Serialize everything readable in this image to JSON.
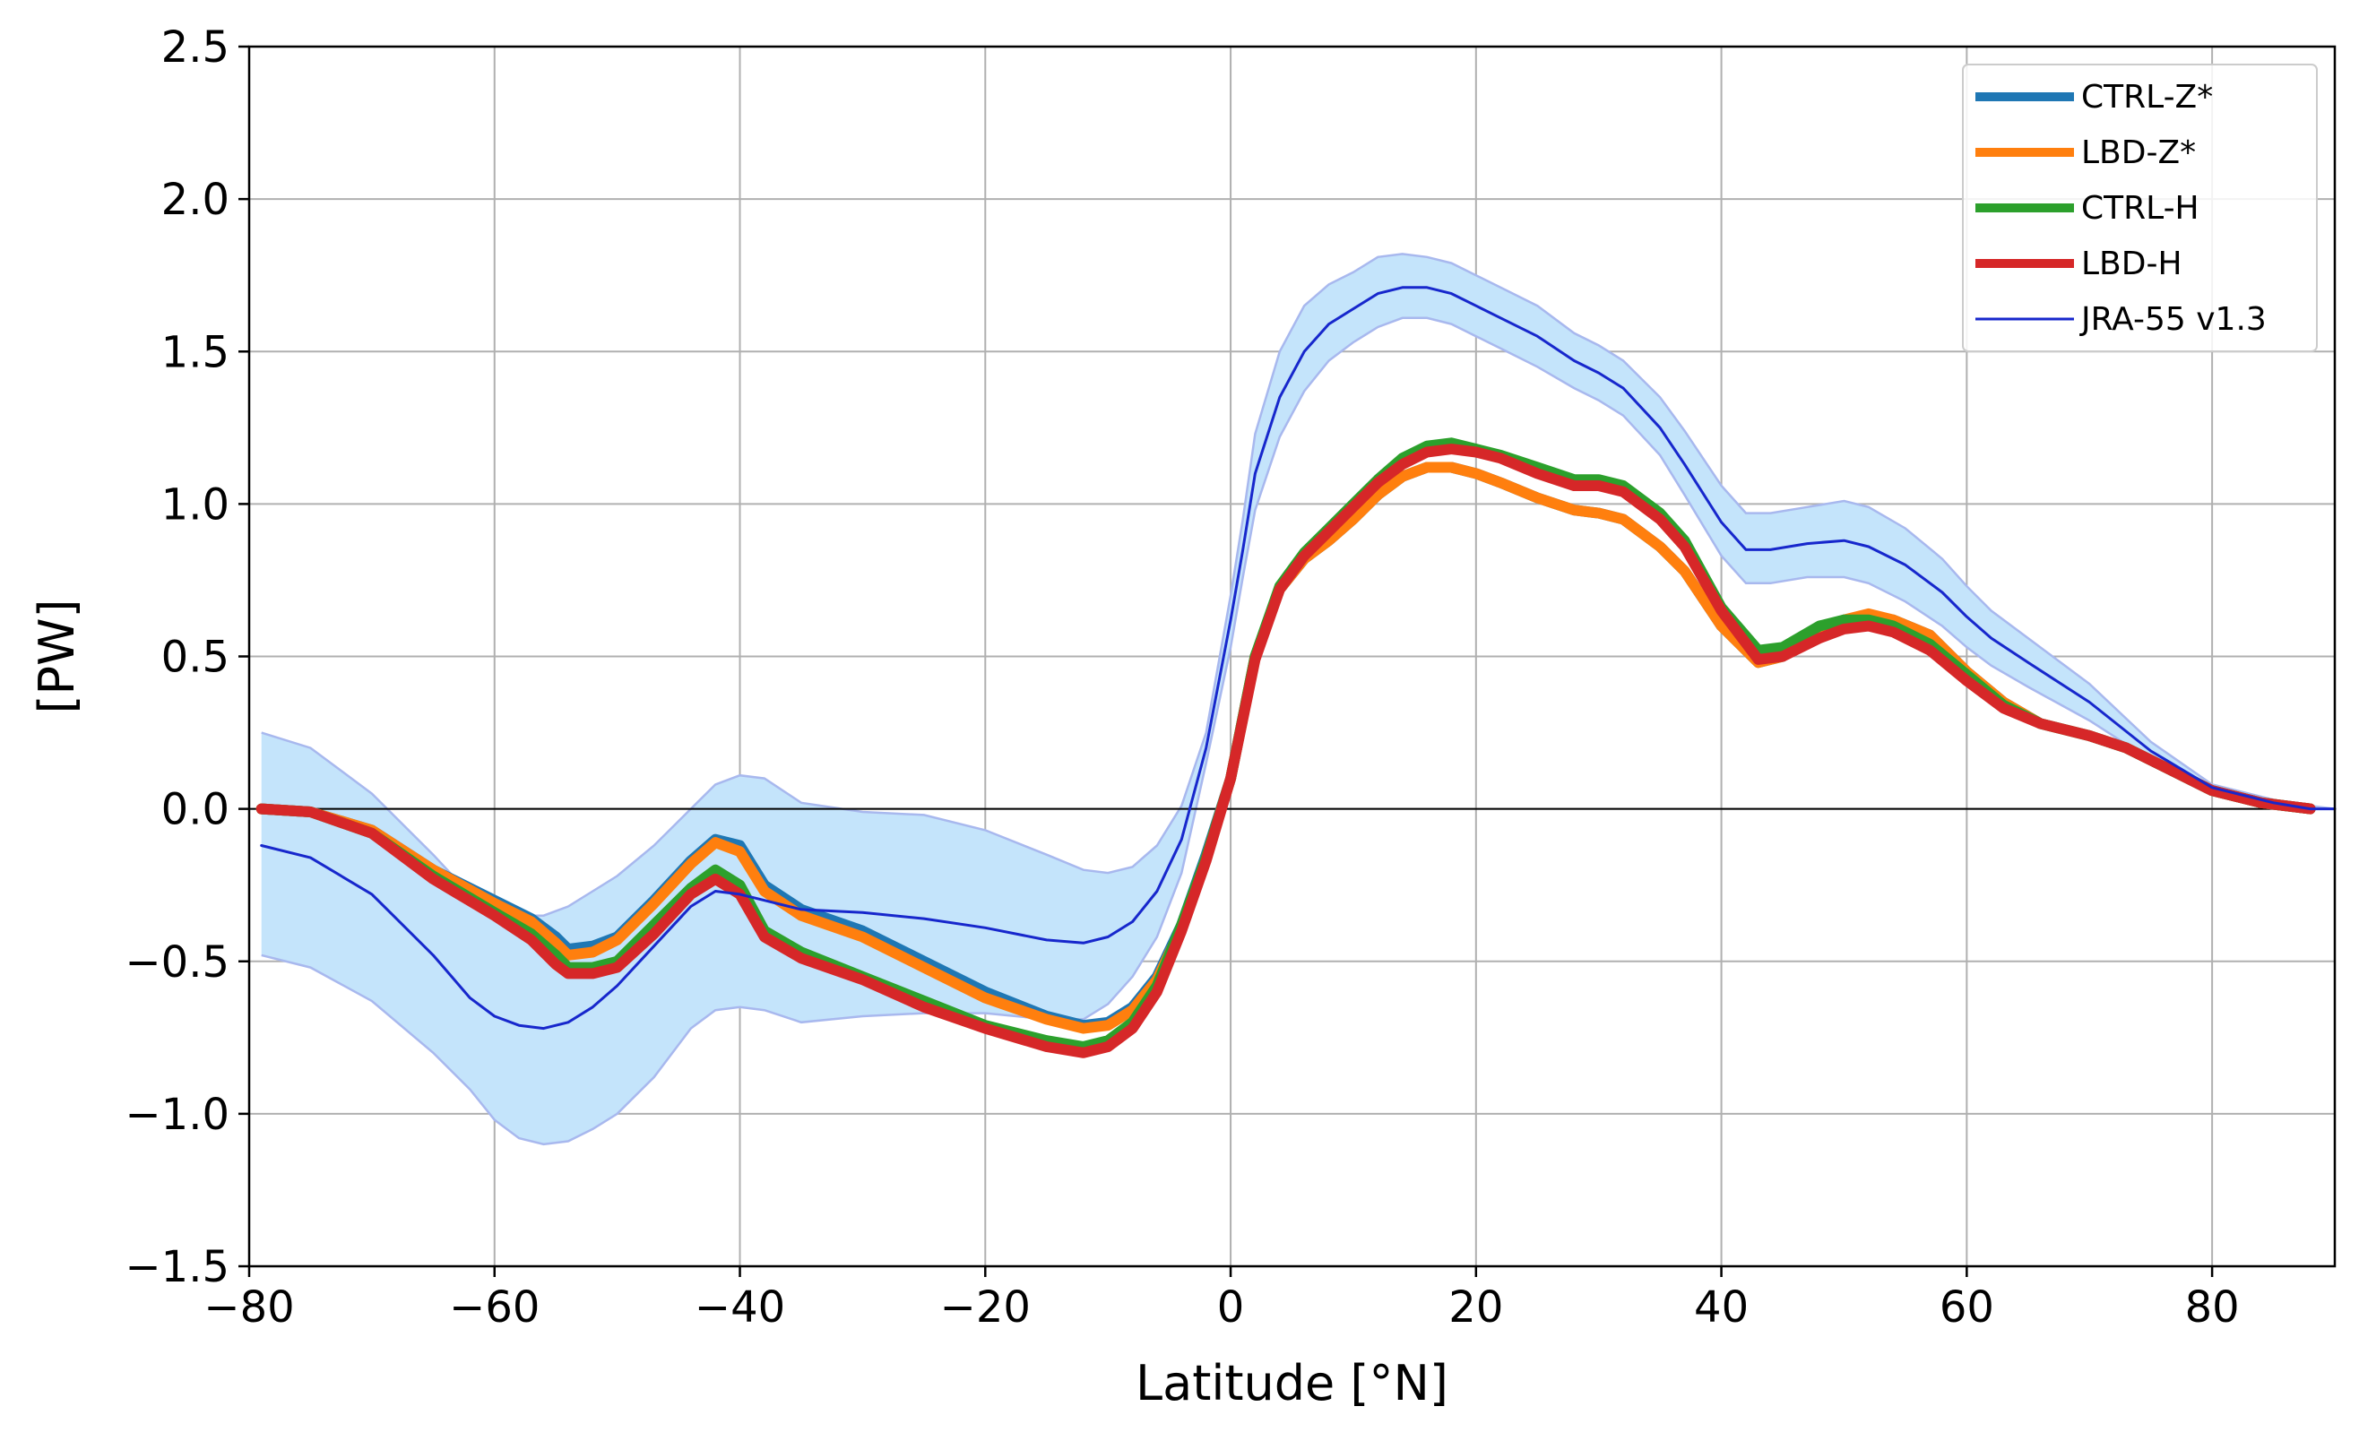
{
  "chart_data": {
    "type": "line",
    "title": "",
    "xlabel": "Latitude [°N]",
    "ylabel": "[PW]",
    "xlim": [
      -80,
      90
    ],
    "ylim": [
      -1.5,
      2.5
    ],
    "xticks": [
      -80,
      -60,
      -40,
      -20,
      0,
      20,
      40,
      60,
      80
    ],
    "xtick_labels": [
      "−80",
      "−60",
      "−40",
      "−20",
      "0",
      "20",
      "40",
      "60",
      "80"
    ],
    "yticks": [
      -1.5,
      -1.0,
      -0.5,
      0.0,
      0.5,
      1.0,
      1.5,
      2.0,
      2.5
    ],
    "ytick_labels": [
      "−1.5",
      "−1.0",
      "−0.5",
      "0.0",
      "0.5",
      "1.0",
      "1.5",
      "2.0",
      "2.5"
    ],
    "grid": true,
    "zero_line": true,
    "legend_position": "upper right",
    "series": [
      {
        "name": "CTRL-Z*",
        "color": "#1f77b4",
        "x": [
          -79,
          -75,
          -70,
          -65,
          -60,
          -57,
          -55,
          -54,
          -52,
          -50,
          -47,
          -44,
          -42,
          -40,
          -38,
          -35,
          -30,
          -25,
          -20,
          -15,
          -12,
          -10,
          -8,
          -6,
          -4,
          -2,
          0,
          2,
          4,
          6,
          8,
          10,
          12,
          14,
          16,
          18,
          20,
          22,
          25,
          28,
          30,
          32,
          35,
          37,
          40,
          43,
          45,
          48,
          50,
          52,
          54,
          57,
          60,
          63,
          66,
          70,
          73,
          76,
          80,
          84,
          88
        ],
        "y": [
          0.0,
          -0.01,
          -0.07,
          -0.2,
          -0.3,
          -0.36,
          -0.42,
          -0.46,
          -0.45,
          -0.42,
          -0.3,
          -0.17,
          -0.1,
          -0.12,
          -0.25,
          -0.33,
          -0.4,
          -0.5,
          -0.6,
          -0.68,
          -0.71,
          -0.7,
          -0.65,
          -0.55,
          -0.38,
          -0.15,
          0.1,
          0.5,
          0.72,
          0.82,
          0.88,
          0.95,
          1.03,
          1.09,
          1.12,
          1.12,
          1.1,
          1.07,
          1.02,
          0.98,
          0.97,
          0.95,
          0.86,
          0.78,
          0.6,
          0.48,
          0.5,
          0.59,
          0.62,
          0.63,
          0.62,
          0.57,
          0.45,
          0.35,
          0.28,
          0.24,
          0.2,
          0.14,
          0.06,
          0.02,
          0.0
        ]
      },
      {
        "name": "LBD-Z*",
        "color": "#ff7f0e",
        "x": [
          -79,
          -75,
          -70,
          -65,
          -60,
          -57,
          -55,
          -54,
          -52,
          -50,
          -47,
          -44,
          -42,
          -40,
          -38,
          -35,
          -30,
          -25,
          -20,
          -15,
          -12,
          -10,
          -8,
          -6,
          -4,
          -2,
          0,
          2,
          4,
          6,
          8,
          10,
          12,
          14,
          16,
          18,
          20,
          22,
          25,
          28,
          30,
          32,
          35,
          37,
          40,
          43,
          45,
          48,
          50,
          52,
          54,
          57,
          60,
          63,
          66,
          70,
          73,
          76,
          80,
          84,
          88
        ],
        "y": [
          0.0,
          -0.01,
          -0.07,
          -0.2,
          -0.31,
          -0.37,
          -0.44,
          -0.48,
          -0.47,
          -0.43,
          -0.31,
          -0.18,
          -0.11,
          -0.14,
          -0.27,
          -0.35,
          -0.42,
          -0.52,
          -0.62,
          -0.69,
          -0.72,
          -0.71,
          -0.66,
          -0.56,
          -0.39,
          -0.16,
          0.1,
          0.5,
          0.72,
          0.82,
          0.88,
          0.95,
          1.03,
          1.09,
          1.12,
          1.12,
          1.1,
          1.07,
          1.02,
          0.98,
          0.97,
          0.95,
          0.86,
          0.78,
          0.6,
          0.48,
          0.5,
          0.59,
          0.62,
          0.64,
          0.62,
          0.57,
          0.45,
          0.35,
          0.28,
          0.24,
          0.2,
          0.14,
          0.06,
          0.02,
          0.0
        ]
      },
      {
        "name": "CTRL-H",
        "color": "#2ca02c",
        "x": [
          -79,
          -75,
          -70,
          -65,
          -60,
          -57,
          -55,
          -54,
          -52,
          -50,
          -47,
          -44,
          -42,
          -40,
          -38,
          -35,
          -30,
          -25,
          -20,
          -15,
          -12,
          -10,
          -8,
          -6,
          -4,
          -2,
          0,
          2,
          4,
          6,
          8,
          10,
          12,
          14,
          16,
          18,
          20,
          22,
          25,
          28,
          30,
          32,
          35,
          37,
          40,
          43,
          45,
          48,
          50,
          52,
          54,
          57,
          60,
          63,
          66,
          70,
          73,
          76,
          80,
          84,
          88
        ],
        "y": [
          0.0,
          -0.01,
          -0.08,
          -0.22,
          -0.34,
          -0.41,
          -0.48,
          -0.52,
          -0.52,
          -0.5,
          -0.38,
          -0.26,
          -0.2,
          -0.25,
          -0.4,
          -0.47,
          -0.55,
          -0.63,
          -0.71,
          -0.76,
          -0.78,
          -0.76,
          -0.7,
          -0.58,
          -0.38,
          -0.16,
          0.1,
          0.5,
          0.73,
          0.84,
          0.92,
          1.0,
          1.08,
          1.15,
          1.19,
          1.2,
          1.18,
          1.16,
          1.12,
          1.08,
          1.08,
          1.06,
          0.97,
          0.88,
          0.66,
          0.52,
          0.53,
          0.6,
          0.62,
          0.62,
          0.6,
          0.54,
          0.44,
          0.34,
          0.28,
          0.24,
          0.2,
          0.14,
          0.06,
          0.02,
          0.0
        ]
      },
      {
        "name": "LBD-H",
        "color": "#d62728",
        "x": [
          -79,
          -75,
          -70,
          -65,
          -60,
          -57,
          -55,
          -54,
          -52,
          -50,
          -47,
          -44,
          -42,
          -40,
          -38,
          -35,
          -30,
          -25,
          -20,
          -15,
          -12,
          -10,
          -8,
          -6,
          -4,
          -2,
          0,
          2,
          4,
          6,
          8,
          10,
          12,
          14,
          16,
          18,
          20,
          22,
          25,
          28,
          30,
          32,
          35,
          37,
          40,
          43,
          45,
          48,
          50,
          52,
          54,
          57,
          60,
          63,
          66,
          70,
          73,
          76,
          80,
          84,
          88
        ],
        "y": [
          0.0,
          -0.01,
          -0.08,
          -0.23,
          -0.35,
          -0.43,
          -0.51,
          -0.54,
          -0.54,
          -0.52,
          -0.41,
          -0.28,
          -0.23,
          -0.28,
          -0.42,
          -0.49,
          -0.56,
          -0.65,
          -0.72,
          -0.78,
          -0.8,
          -0.78,
          -0.72,
          -0.6,
          -0.4,
          -0.17,
          0.1,
          0.49,
          0.72,
          0.83,
          0.91,
          0.99,
          1.07,
          1.13,
          1.17,
          1.18,
          1.17,
          1.15,
          1.1,
          1.06,
          1.06,
          1.04,
          0.95,
          0.86,
          0.65,
          0.49,
          0.5,
          0.56,
          0.59,
          0.6,
          0.58,
          0.52,
          0.42,
          0.33,
          0.28,
          0.24,
          0.2,
          0.14,
          0.06,
          0.02,
          0.0
        ]
      },
      {
        "name": "JRA-55 v1.3",
        "color": "#1727cc",
        "x": [
          -79,
          -75,
          -70,
          -65,
          -62,
          -60,
          -58,
          -56,
          -54,
          -52,
          -50,
          -47,
          -44,
          -42,
          -40,
          -38,
          -35,
          -30,
          -25,
          -20,
          -15,
          -12,
          -10,
          -8,
          -6,
          -4,
          -2,
          0,
          1,
          2,
          4,
          6,
          8,
          10,
          12,
          14,
          16,
          18,
          20,
          22,
          25,
          28,
          30,
          32,
          35,
          37,
          40,
          42,
          44,
          47,
          50,
          52,
          55,
          58,
          60,
          62,
          65,
          70,
          75,
          80,
          85,
          88,
          90
        ],
        "y": [
          -0.12,
          -0.16,
          -0.28,
          -0.48,
          -0.62,
          -0.68,
          -0.71,
          -0.72,
          -0.7,
          -0.65,
          -0.58,
          -0.45,
          -0.32,
          -0.27,
          -0.28,
          -0.3,
          -0.33,
          -0.34,
          -0.36,
          -0.39,
          -0.43,
          -0.44,
          -0.42,
          -0.37,
          -0.27,
          -0.1,
          0.2,
          0.62,
          0.85,
          1.1,
          1.35,
          1.5,
          1.59,
          1.64,
          1.69,
          1.71,
          1.71,
          1.69,
          1.65,
          1.61,
          1.55,
          1.47,
          1.43,
          1.38,
          1.25,
          1.13,
          0.94,
          0.85,
          0.85,
          0.87,
          0.88,
          0.86,
          0.8,
          0.71,
          0.63,
          0.56,
          0.48,
          0.35,
          0.19,
          0.07,
          0.02,
          0.0,
          0.0
        ]
      }
    ],
    "band": {
      "name": "JRA-55 v1.3 spread",
      "fill_color": "#c4e4fb",
      "edge_color": "#a8b8ee",
      "x": [
        -79,
        -75,
        -70,
        -65,
        -62,
        -60,
        -58,
        -56,
        -54,
        -52,
        -50,
        -47,
        -44,
        -42,
        -40,
        -38,
        -35,
        -30,
        -25,
        -20,
        -15,
        -12,
        -10,
        -8,
        -6,
        -4,
        -2,
        0,
        1,
        2,
        4,
        6,
        8,
        10,
        12,
        14,
        16,
        18,
        20,
        22,
        25,
        28,
        30,
        32,
        35,
        37,
        40,
        42,
        44,
        47,
        50,
        52,
        55,
        58,
        60,
        62,
        65,
        70,
        75,
        80,
        85,
        88,
        90
      ],
      "upper": [
        0.25,
        0.2,
        0.05,
        -0.15,
        -0.28,
        -0.33,
        -0.35,
        -0.35,
        -0.32,
        -0.27,
        -0.22,
        -0.12,
        0.0,
        0.08,
        0.11,
        0.1,
        0.02,
        -0.01,
        -0.02,
        -0.07,
        -0.15,
        -0.2,
        -0.21,
        -0.19,
        -0.12,
        0.01,
        0.25,
        0.7,
        0.95,
        1.23,
        1.5,
        1.65,
        1.72,
        1.76,
        1.81,
        1.82,
        1.81,
        1.79,
        1.75,
        1.71,
        1.65,
        1.56,
        1.52,
        1.47,
        1.35,
        1.24,
        1.06,
        0.97,
        0.97,
        0.99,
        1.01,
        0.99,
        0.92,
        0.82,
        0.73,
        0.65,
        0.56,
        0.41,
        0.22,
        0.08,
        0.03,
        0.01,
        0.0
      ],
      "lower": [
        -0.48,
        -0.52,
        -0.63,
        -0.8,
        -0.92,
        -1.02,
        -1.08,
        -1.1,
        -1.09,
        -1.05,
        -1.0,
        -0.88,
        -0.72,
        -0.66,
        -0.65,
        -0.66,
        -0.7,
        -0.68,
        -0.67,
        -0.67,
        -0.69,
        -0.69,
        -0.64,
        -0.55,
        -0.42,
        -0.21,
        0.15,
        0.53,
        0.76,
        0.98,
        1.22,
        1.37,
        1.47,
        1.53,
        1.58,
        1.61,
        1.61,
        1.59,
        1.55,
        1.51,
        1.45,
        1.38,
        1.34,
        1.29,
        1.16,
        1.03,
        0.83,
        0.74,
        0.74,
        0.76,
        0.76,
        0.74,
        0.68,
        0.6,
        0.53,
        0.47,
        0.4,
        0.29,
        0.16,
        0.06,
        0.02,
        0.0,
        0.0
      ]
    }
  }
}
